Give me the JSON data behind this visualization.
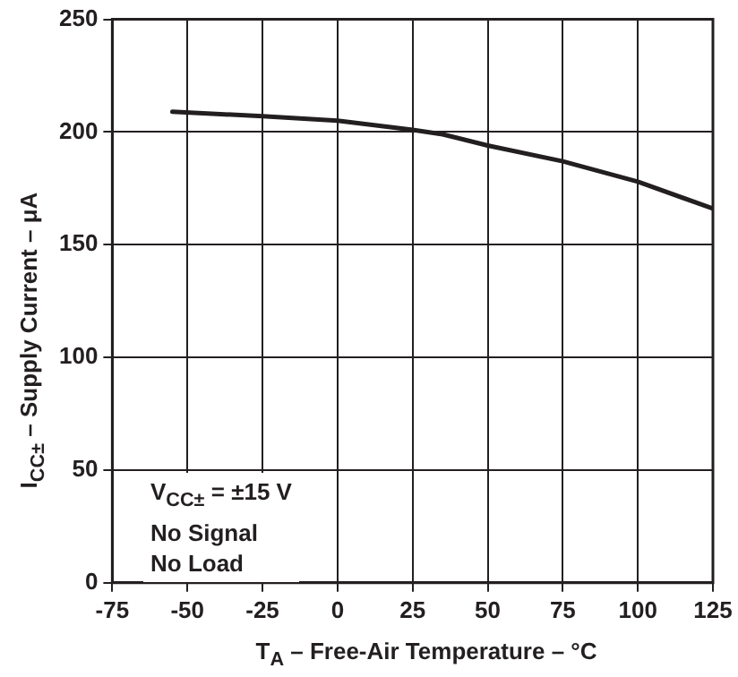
{
  "chart_data": {
    "type": "line",
    "xlabel": "T$_{A}$ – Free-Air Temperature – °C",
    "ylabel": "I$_{CC±}$ – Supply Current – μA",
    "annotations": [
      "V$_{CC±}$ = ±15 V",
      "No Signal",
      "No Load"
    ],
    "series": [
      {
        "color": "#231f20",
        "x": [
          -55,
          -25,
          0,
          25,
          35,
          50,
          75,
          100,
          125
        ],
        "values": [
          209,
          207,
          205,
          201,
          199,
          194,
          187,
          178,
          166
        ]
      }
    ],
    "xlim": [
      -75,
      125
    ],
    "xticks": [
      -75,
      -50,
      -25,
      0,
      25,
      50,
      75,
      100,
      125
    ],
    "ylim": [
      0,
      250
    ],
    "yticks": [
      0,
      50,
      100,
      150,
      200,
      250
    ],
    "grid": true,
    "legend": false,
    "marker": "none",
    "line_style": "solid"
  }
}
